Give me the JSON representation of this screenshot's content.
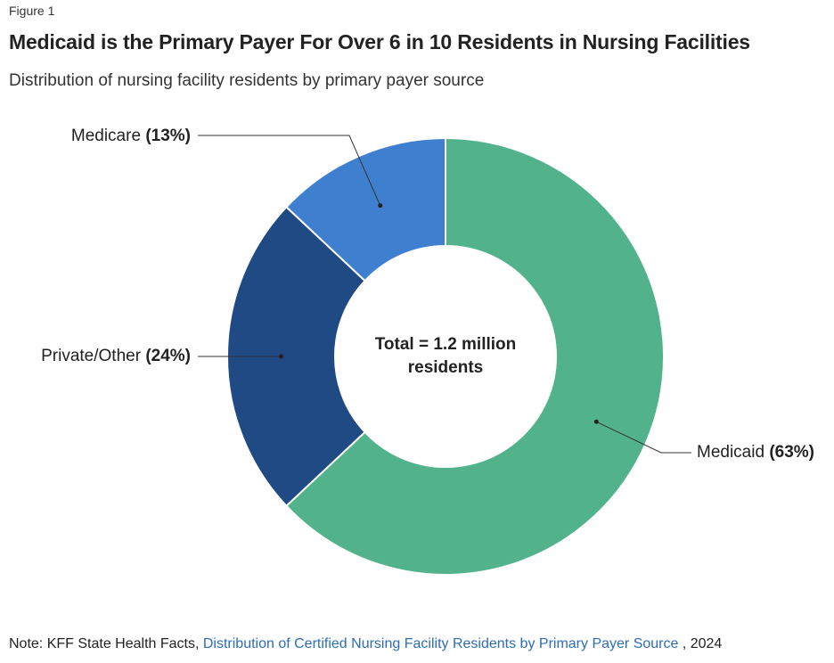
{
  "figure_label": "Figure 1",
  "title": "Medicaid is the Primary Payer For Over 6 in 10 Residents in Nursing Facilities",
  "subtitle": "Distribution of nursing facility residents by primary payer source",
  "center_label": {
    "line1": "Total = 1.2 million",
    "line2": "residents"
  },
  "note": {
    "prefix": "Note: KFF State Health Facts, ",
    "link_text": "Distribution of Certified Nursing Facility Residents by Primary Payer Source",
    "suffix": " , 2024"
  },
  "colors": {
    "medicaid": "#52b28b",
    "medicare": "#3f7fcf",
    "private_other": "#1f4a84"
  },
  "chart_data": {
    "type": "pie",
    "donut": true,
    "title": "Medicaid is the Primary Payer For Over 6 in 10 Residents in Nursing Facilities",
    "subtitle": "Distribution of nursing facility residents by primary payer source",
    "center_text": "Total = 1.2 million residents",
    "slices": [
      {
        "label": "Medicaid",
        "value": 63,
        "value_text": "(63%)",
        "color": "#52b28b"
      },
      {
        "label": "Private/Other",
        "value": 24,
        "value_text": "(24%)",
        "color": "#1f4a84"
      },
      {
        "label": "Medicare",
        "value": 13,
        "value_text": "(13%)",
        "color": "#3f7fcf"
      }
    ]
  }
}
